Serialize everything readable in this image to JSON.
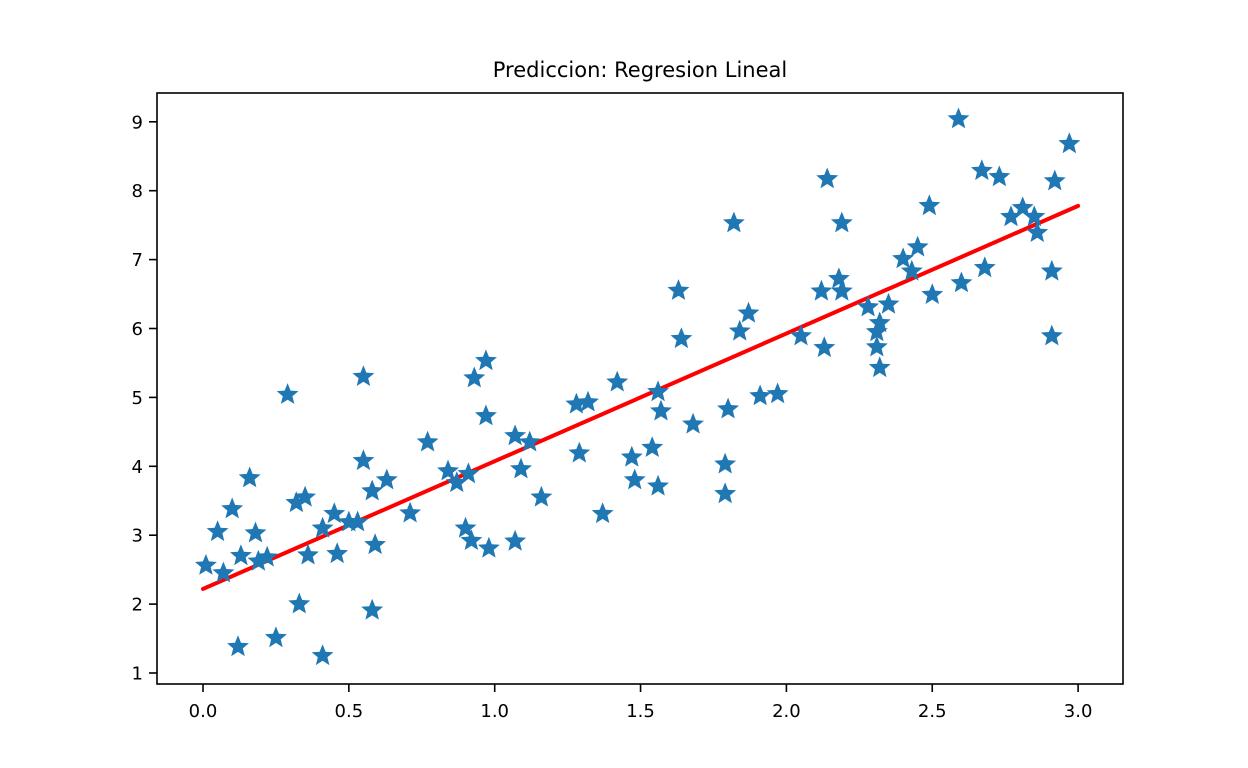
{
  "figure": {
    "background": "#ffffff"
  },
  "chart_data": {
    "type": "scatter",
    "title": "Prediccion: Regresion Lineal",
    "xlabel": "",
    "ylabel": "",
    "grid": false,
    "legend": "none",
    "marker": "star",
    "marker_color": "#1f77b4",
    "axis_color": "#000000",
    "xlim": [
      -0.16,
      3.15
    ],
    "ylim": [
      0.84,
      9.42
    ],
    "x_tick_labels": [
      "0.0",
      "0.5",
      "1.0",
      "1.5",
      "2.0",
      "2.5",
      "3.0"
    ],
    "x_tick_values": [
      0.0,
      0.5,
      1.0,
      1.5,
      2.0,
      2.5,
      3.0
    ],
    "y_tick_labels": [
      "1",
      "2",
      "3",
      "4",
      "5",
      "6",
      "7",
      "8",
      "9"
    ],
    "y_tick_values": [
      1,
      2,
      3,
      4,
      5,
      6,
      7,
      8,
      9
    ],
    "scatter_points": [
      [
        0.01,
        2.56
      ],
      [
        0.05,
        3.05
      ],
      [
        0.07,
        2.45
      ],
      [
        0.1,
        3.38
      ],
      [
        0.12,
        1.38
      ],
      [
        0.13,
        2.7
      ],
      [
        0.16,
        3.83
      ],
      [
        0.18,
        3.03
      ],
      [
        0.19,
        2.62
      ],
      [
        0.22,
        2.68
      ],
      [
        0.25,
        1.51
      ],
      [
        0.29,
        5.04
      ],
      [
        0.32,
        3.47
      ],
      [
        0.33,
        2.0
      ],
      [
        0.35,
        3.55
      ],
      [
        0.36,
        2.71
      ],
      [
        0.41,
        3.1
      ],
      [
        0.41,
        1.25
      ],
      [
        0.45,
        3.31
      ],
      [
        0.46,
        2.73
      ],
      [
        0.5,
        3.19
      ],
      [
        0.53,
        3.19
      ],
      [
        0.55,
        4.08
      ],
      [
        0.55,
        5.3
      ],
      [
        0.58,
        3.64
      ],
      [
        0.58,
        1.91
      ],
      [
        0.59,
        2.86
      ],
      [
        0.63,
        3.8
      ],
      [
        0.71,
        3.32
      ],
      [
        0.77,
        4.35
      ],
      [
        0.84,
        3.93
      ],
      [
        0.87,
        3.76
      ],
      [
        0.9,
        3.1
      ],
      [
        0.91,
        3.89
      ],
      [
        0.92,
        2.92
      ],
      [
        0.93,
        5.28
      ],
      [
        0.97,
        5.53
      ],
      [
        0.97,
        4.73
      ],
      [
        0.98,
        2.81
      ],
      [
        1.07,
        4.44
      ],
      [
        1.07,
        2.91
      ],
      [
        1.09,
        3.96
      ],
      [
        1.12,
        4.35
      ],
      [
        1.16,
        3.55
      ],
      [
        1.28,
        4.9
      ],
      [
        1.32,
        4.93
      ],
      [
        1.29,
        4.19
      ],
      [
        1.37,
        3.31
      ],
      [
        1.42,
        5.22
      ],
      [
        1.47,
        4.13
      ],
      [
        1.48,
        3.8
      ],
      [
        1.54,
        4.27
      ],
      [
        1.56,
        5.08
      ],
      [
        1.56,
        3.71
      ],
      [
        1.57,
        4.8
      ],
      [
        1.63,
        6.55
      ],
      [
        1.64,
        5.85
      ],
      [
        1.68,
        4.61
      ],
      [
        1.79,
        4.03
      ],
      [
        1.79,
        3.6
      ],
      [
        1.8,
        4.83
      ],
      [
        1.82,
        7.53
      ],
      [
        1.84,
        5.96
      ],
      [
        1.87,
        6.22
      ],
      [
        1.91,
        5.02
      ],
      [
        1.97,
        5.05
      ],
      [
        2.05,
        5.89
      ],
      [
        2.12,
        6.54
      ],
      [
        2.13,
        5.72
      ],
      [
        2.14,
        8.17
      ],
      [
        2.18,
        6.72
      ],
      [
        2.19,
        6.54
      ],
      [
        2.19,
        7.53
      ],
      [
        2.28,
        6.31
      ],
      [
        2.31,
        5.95
      ],
      [
        2.31,
        5.73
      ],
      [
        2.32,
        6.08
      ],
      [
        2.32,
        5.43
      ],
      [
        2.35,
        6.35
      ],
      [
        2.4,
        7.01
      ],
      [
        2.43,
        6.83
      ],
      [
        2.45,
        7.18
      ],
      [
        2.49,
        7.78
      ],
      [
        2.5,
        6.49
      ],
      [
        2.59,
        9.04
      ],
      [
        2.6,
        6.66
      ],
      [
        2.67,
        8.29
      ],
      [
        2.68,
        6.88
      ],
      [
        2.73,
        8.2
      ],
      [
        2.77,
        7.62
      ],
      [
        2.81,
        7.75
      ],
      [
        2.85,
        7.62
      ],
      [
        2.86,
        7.39
      ],
      [
        2.91,
        6.83
      ],
      [
        2.91,
        5.89
      ],
      [
        2.92,
        8.14
      ],
      [
        2.97,
        8.68
      ]
    ],
    "regression_line": {
      "x_start": 0.0,
      "y_start": 2.22,
      "x_end": 3.0,
      "y_end": 7.78,
      "slope": 1.85,
      "intercept": 2.22,
      "color": "#ff0000"
    }
  }
}
